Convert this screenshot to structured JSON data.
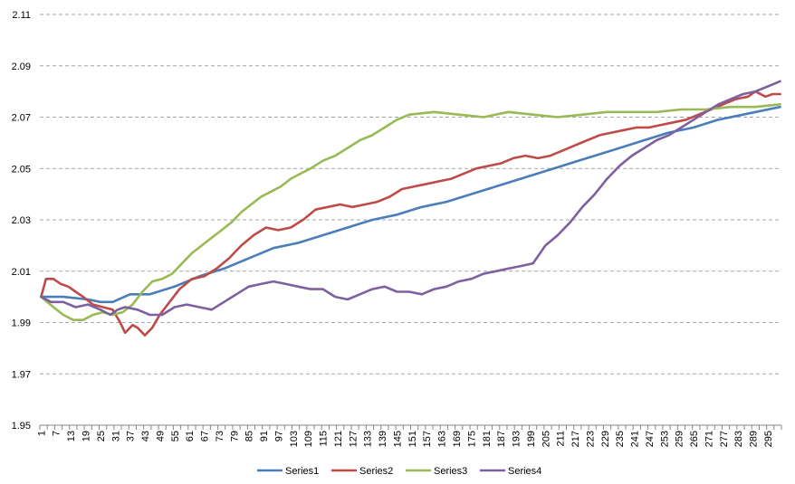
{
  "chart_data": {
    "type": "line",
    "title": "",
    "xlabel": "",
    "ylabel": "",
    "x_count": 300,
    "x_tick_labels": [
      "1",
      "7",
      "13",
      "19",
      "25",
      "31",
      "37",
      "43",
      "49",
      "55",
      "61",
      "67",
      "73",
      "79",
      "85",
      "91",
      "97",
      "103",
      "109",
      "115",
      "121",
      "127",
      "133",
      "139",
      "145",
      "151",
      "157",
      "163",
      "169",
      "175",
      "181",
      "187",
      "193",
      "199",
      "205",
      "211",
      "217",
      "223",
      "229",
      "235",
      "241",
      "247",
      "253",
      "259",
      "265",
      "271",
      "277",
      "283",
      "289",
      "295"
    ],
    "y_ticks": [
      "1.95",
      "1.97",
      "1.99",
      "2.01",
      "2.03",
      "2.05",
      "2.07",
      "2.09",
      "2.11"
    ],
    "ylim": [
      1.95,
      2.11
    ],
    "grid": true,
    "legend": "bottom",
    "series": [
      {
        "name": "Series1",
        "color": "#4a7ebb",
        "points": [
          [
            1,
            2.0
          ],
          [
            10,
            2.0
          ],
          [
            20,
            1.999
          ],
          [
            25,
            1.998
          ],
          [
            30,
            1.998
          ],
          [
            37,
            2.001
          ],
          [
            45,
            2.001
          ],
          [
            55,
            2.004
          ],
          [
            65,
            2.008
          ],
          [
            75,
            2.011
          ],
          [
            85,
            2.015
          ],
          [
            95,
            2.019
          ],
          [
            105,
            2.021
          ],
          [
            115,
            2.024
          ],
          [
            125,
            2.027
          ],
          [
            135,
            2.03
          ],
          [
            145,
            2.032
          ],
          [
            155,
            2.035
          ],
          [
            165,
            2.037
          ],
          [
            175,
            2.04
          ],
          [
            185,
            2.043
          ],
          [
            195,
            2.046
          ],
          [
            205,
            2.049
          ],
          [
            215,
            2.052
          ],
          [
            225,
            2.055
          ],
          [
            235,
            2.058
          ],
          [
            245,
            2.061
          ],
          [
            255,
            2.064
          ],
          [
            265,
            2.066
          ],
          [
            275,
            2.069
          ],
          [
            285,
            2.071
          ],
          [
            300,
            2.074
          ]
        ]
      },
      {
        "name": "Series2",
        "color": "#be4b48",
        "points": [
          [
            1,
            2.0
          ],
          [
            3,
            2.007
          ],
          [
            6,
            2.007
          ],
          [
            9,
            2.005
          ],
          [
            12,
            2.004
          ],
          [
            15,
            2.002
          ],
          [
            18,
            2.0
          ],
          [
            22,
            1.997
          ],
          [
            26,
            1.996
          ],
          [
            30,
            1.995
          ],
          [
            33,
            1.99
          ],
          [
            35,
            1.986
          ],
          [
            38,
            1.989
          ],
          [
            40,
            1.988
          ],
          [
            43,
            1.985
          ],
          [
            46,
            1.988
          ],
          [
            49,
            1.993
          ],
          [
            53,
            1.998
          ],
          [
            57,
            2.003
          ],
          [
            62,
            2.007
          ],
          [
            67,
            2.008
          ],
          [
            72,
            2.011
          ],
          [
            77,
            2.015
          ],
          [
            82,
            2.02
          ],
          [
            87,
            2.024
          ],
          [
            92,
            2.027
          ],
          [
            97,
            2.026
          ],
          [
            102,
            2.027
          ],
          [
            107,
            2.03
          ],
          [
            112,
            2.034
          ],
          [
            117,
            2.035
          ],
          [
            122,
            2.036
          ],
          [
            127,
            2.035
          ],
          [
            132,
            2.036
          ],
          [
            137,
            2.037
          ],
          [
            142,
            2.039
          ],
          [
            147,
            2.042
          ],
          [
            152,
            2.043
          ],
          [
            157,
            2.044
          ],
          [
            162,
            2.045
          ],
          [
            167,
            2.046
          ],
          [
            172,
            2.048
          ],
          [
            177,
            2.05
          ],
          [
            182,
            2.051
          ],
          [
            187,
            2.052
          ],
          [
            192,
            2.054
          ],
          [
            197,
            2.055
          ],
          [
            202,
            2.054
          ],
          [
            207,
            2.055
          ],
          [
            212,
            2.057
          ],
          [
            217,
            2.059
          ],
          [
            222,
            2.061
          ],
          [
            227,
            2.063
          ],
          [
            232,
            2.064
          ],
          [
            237,
            2.065
          ],
          [
            242,
            2.066
          ],
          [
            247,
            2.066
          ],
          [
            252,
            2.067
          ],
          [
            257,
            2.068
          ],
          [
            262,
            2.069
          ],
          [
            267,
            2.071
          ],
          [
            272,
            2.073
          ],
          [
            277,
            2.075
          ],
          [
            282,
            2.077
          ],
          [
            287,
            2.078
          ],
          [
            290,
            2.08
          ],
          [
            294,
            2.078
          ],
          [
            297,
            2.079
          ],
          [
            300,
            2.079
          ]
        ]
      },
      {
        "name": "Series3",
        "color": "#98b954",
        "points": [
          [
            1,
            2.0
          ],
          [
            6,
            1.996
          ],
          [
            10,
            1.993
          ],
          [
            14,
            1.991
          ],
          [
            18,
            1.991
          ],
          [
            22,
            1.993
          ],
          [
            26,
            1.994
          ],
          [
            30,
            1.993
          ],
          [
            34,
            1.994
          ],
          [
            38,
            1.997
          ],
          [
            42,
            2.002
          ],
          [
            46,
            2.006
          ],
          [
            50,
            2.007
          ],
          [
            54,
            2.009
          ],
          [
            58,
            2.013
          ],
          [
            62,
            2.017
          ],
          [
            66,
            2.02
          ],
          [
            70,
            2.023
          ],
          [
            74,
            2.026
          ],
          [
            78,
            2.029
          ],
          [
            82,
            2.033
          ],
          [
            86,
            2.036
          ],
          [
            90,
            2.039
          ],
          [
            94,
            2.041
          ],
          [
            98,
            2.043
          ],
          [
            102,
            2.046
          ],
          [
            106,
            2.048
          ],
          [
            110,
            2.05
          ],
          [
            115,
            2.053
          ],
          [
            120,
            2.055
          ],
          [
            125,
            2.058
          ],
          [
            130,
            2.061
          ],
          [
            135,
            2.063
          ],
          [
            140,
            2.066
          ],
          [
            145,
            2.069
          ],
          [
            150,
            2.071
          ],
          [
            160,
            2.072
          ],
          [
            170,
            2.071
          ],
          [
            180,
            2.07
          ],
          [
            190,
            2.072
          ],
          [
            200,
            2.071
          ],
          [
            210,
            2.07
          ],
          [
            220,
            2.071
          ],
          [
            230,
            2.072
          ],
          [
            240,
            2.072
          ],
          [
            250,
            2.072
          ],
          [
            260,
            2.073
          ],
          [
            270,
            2.073
          ],
          [
            280,
            2.074
          ],
          [
            290,
            2.074
          ],
          [
            300,
            2.075
          ]
        ]
      },
      {
        "name": "Series4",
        "color": "#7d60a0",
        "points": [
          [
            1,
            2.0
          ],
          [
            5,
            1.998
          ],
          [
            10,
            1.998
          ],
          [
            15,
            1.996
          ],
          [
            20,
            1.997
          ],
          [
            25,
            1.995
          ],
          [
            29,
            1.993
          ],
          [
            32,
            1.995
          ],
          [
            35,
            1.996
          ],
          [
            40,
            1.995
          ],
          [
            45,
            1.993
          ],
          [
            50,
            1.993
          ],
          [
            55,
            1.996
          ],
          [
            60,
            1.997
          ],
          [
            65,
            1.996
          ],
          [
            70,
            1.995
          ],
          [
            75,
            1.998
          ],
          [
            80,
            2.001
          ],
          [
            85,
            2.004
          ],
          [
            90,
            2.005
          ],
          [
            95,
            2.006
          ],
          [
            100,
            2.005
          ],
          [
            105,
            2.004
          ],
          [
            110,
            2.003
          ],
          [
            115,
            2.003
          ],
          [
            120,
            2.0
          ],
          [
            125,
            1.999
          ],
          [
            130,
            2.001
          ],
          [
            135,
            2.003
          ],
          [
            140,
            2.004
          ],
          [
            145,
            2.002
          ],
          [
            150,
            2.002
          ],
          [
            155,
            2.001
          ],
          [
            160,
            2.003
          ],
          [
            165,
            2.004
          ],
          [
            170,
            2.006
          ],
          [
            175,
            2.007
          ],
          [
            180,
            2.009
          ],
          [
            185,
            2.01
          ],
          [
            190,
            2.011
          ],
          [
            195,
            2.012
          ],
          [
            200,
            2.013
          ],
          [
            205,
            2.02
          ],
          [
            210,
            2.024
          ],
          [
            215,
            2.029
          ],
          [
            220,
            2.035
          ],
          [
            225,
            2.04
          ],
          [
            230,
            2.046
          ],
          [
            235,
            2.051
          ],
          [
            240,
            2.055
          ],
          [
            245,
            2.058
          ],
          [
            250,
            2.061
          ],
          [
            255,
            2.063
          ],
          [
            260,
            2.066
          ],
          [
            265,
            2.069
          ],
          [
            270,
            2.072
          ],
          [
            275,
            2.075
          ],
          [
            280,
            2.077
          ],
          [
            285,
            2.079
          ],
          [
            290,
            2.08
          ],
          [
            295,
            2.082
          ],
          [
            300,
            2.084
          ]
        ]
      }
    ]
  }
}
